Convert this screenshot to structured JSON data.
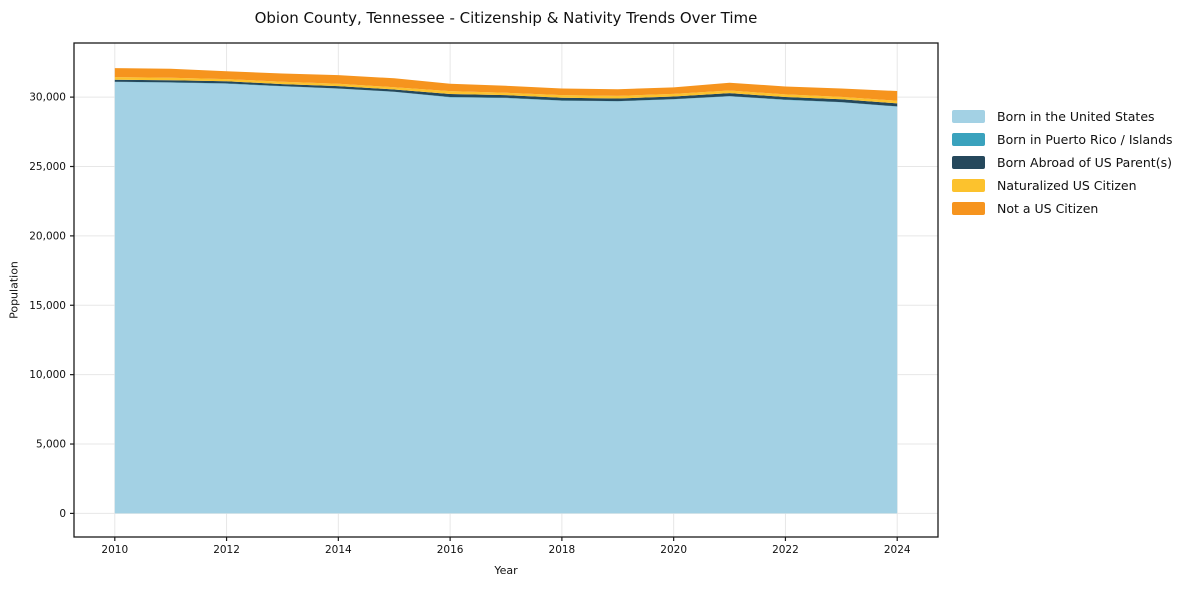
{
  "chart_data": {
    "type": "area",
    "stacked": true,
    "title": "Obion County, Tennessee - Citizenship & Nativity Trends Over Time",
    "xlabel": "Year",
    "ylabel": "Population",
    "grid": true,
    "legend_position": "right",
    "xlim": [
      2009.27,
      2024.73
    ],
    "ylim": [
      -1700,
      33900
    ],
    "x": [
      2010,
      2011,
      2012,
      2013,
      2014,
      2015,
      2016,
      2017,
      2018,
      2019,
      2020,
      2021,
      2022,
      2023,
      2024
    ],
    "x_ticks": [
      2010,
      2012,
      2014,
      2016,
      2018,
      2020,
      2022,
      2024
    ],
    "x_tick_labels": [
      "2010",
      "2012",
      "2014",
      "2016",
      "2018",
      "2020",
      "2022",
      "2024"
    ],
    "y_ticks": [
      0,
      5000,
      10000,
      15000,
      20000,
      25000,
      30000
    ],
    "y_tick_labels": [
      "0",
      "5,000",
      "10,000",
      "15,000",
      "20,000",
      "25,000",
      "30,000"
    ],
    "series": [
      {
        "id": "born-us",
        "name": "Born in the United States",
        "color": "#a3d1e4",
        "values": [
          31090,
          31040,
          30960,
          30770,
          30610,
          30380,
          29985,
          29925,
          29735,
          29690,
          29840,
          30055,
          29790,
          29620,
          29315
        ]
      },
      {
        "id": "born-puerto-rico",
        "name": "Born in Puerto Rico / Islands",
        "color": "#3aa2bd",
        "values": [
          20,
          25,
          30,
          20,
          15,
          10,
          20,
          30,
          25,
          20,
          15,
          20,
          25,
          20,
          15
        ]
      },
      {
        "id": "born-abroad",
        "name": "Born Abroad of US Parent(s)",
        "color": "#25485c",
        "values": [
          140,
          150,
          150,
          150,
          170,
          160,
          220,
          190,
          190,
          190,
          190,
          210,
          190,
          210,
          220
        ]
      },
      {
        "id": "naturalized",
        "name": "Naturalized US Citizen",
        "color": "#fcc22d",
        "values": [
          190,
          185,
          160,
          170,
          170,
          160,
          210,
          170,
          190,
          190,
          190,
          190,
          190,
          170,
          190
        ]
      },
      {
        "id": "not-citizen",
        "name": "Not a US Citizen",
        "color": "#f6941e",
        "values": [
          650,
          640,
          560,
          590,
          620,
          650,
          530,
          500,
          480,
          480,
          470,
          560,
          570,
          600,
          700
        ]
      }
    ]
  }
}
